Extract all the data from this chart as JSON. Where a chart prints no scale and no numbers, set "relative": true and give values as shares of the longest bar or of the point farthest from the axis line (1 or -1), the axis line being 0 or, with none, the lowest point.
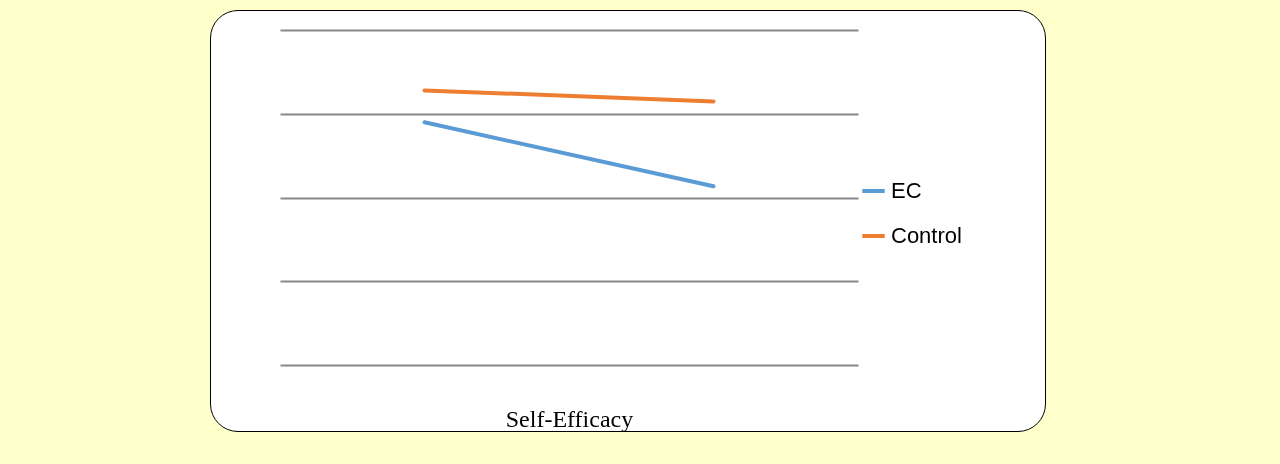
{
  "chart_data": {
    "type": "line",
    "relative": true,
    "xlabel": "Self-Efficacy",
    "categories": [
      null,
      null
    ],
    "series": [
      {
        "name": "EC",
        "color": "#5b9bd5",
        "values": [
          0.884,
          0.651
        ]
      },
      {
        "name": "Control",
        "color": "#ed7d31",
        "values": [
          1,
          0.96
        ]
      }
    ],
    "grid": "y",
    "legend": "right",
    "marker": "none",
    "line_style": "solid"
  }
}
